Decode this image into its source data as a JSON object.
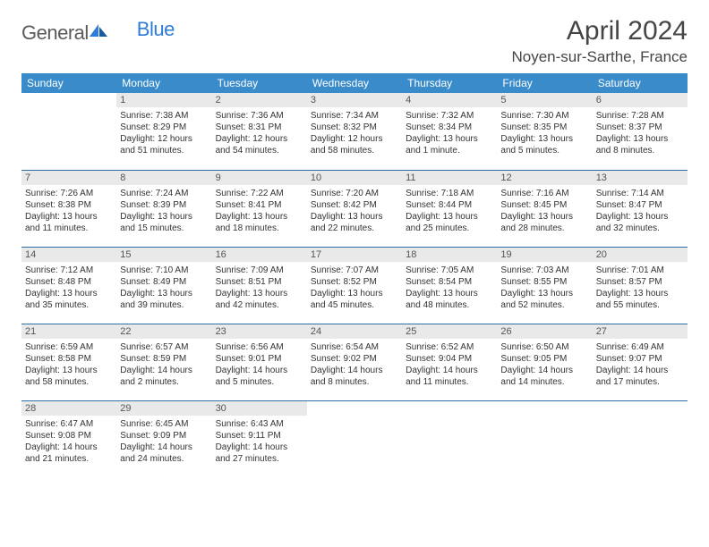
{
  "logo": {
    "text1": "General",
    "text2": "Blue"
  },
  "title": "April 2024",
  "location": "Noyen-sur-Sarthe, France",
  "colors": {
    "headerBg": "#3a8bc9",
    "headerText": "#ffffff",
    "rowBorder": "#2f6fa5",
    "dayBarBg": "#e9e9e9",
    "logoBlue": "#2e7cd6"
  },
  "weekdays": [
    "Sunday",
    "Monday",
    "Tuesday",
    "Wednesday",
    "Thursday",
    "Friday",
    "Saturday"
  ],
  "weeks": [
    [
      {
        "day": "",
        "l1": "",
        "l2": "",
        "l3": "",
        "l4": ""
      },
      {
        "day": "1",
        "l1": "Sunrise: 7:38 AM",
        "l2": "Sunset: 8:29 PM",
        "l3": "Daylight: 12 hours",
        "l4": "and 51 minutes."
      },
      {
        "day": "2",
        "l1": "Sunrise: 7:36 AM",
        "l2": "Sunset: 8:31 PM",
        "l3": "Daylight: 12 hours",
        "l4": "and 54 minutes."
      },
      {
        "day": "3",
        "l1": "Sunrise: 7:34 AM",
        "l2": "Sunset: 8:32 PM",
        "l3": "Daylight: 12 hours",
        "l4": "and 58 minutes."
      },
      {
        "day": "4",
        "l1": "Sunrise: 7:32 AM",
        "l2": "Sunset: 8:34 PM",
        "l3": "Daylight: 13 hours",
        "l4": "and 1 minute."
      },
      {
        "day": "5",
        "l1": "Sunrise: 7:30 AM",
        "l2": "Sunset: 8:35 PM",
        "l3": "Daylight: 13 hours",
        "l4": "and 5 minutes."
      },
      {
        "day": "6",
        "l1": "Sunrise: 7:28 AM",
        "l2": "Sunset: 8:37 PM",
        "l3": "Daylight: 13 hours",
        "l4": "and 8 minutes."
      }
    ],
    [
      {
        "day": "7",
        "l1": "Sunrise: 7:26 AM",
        "l2": "Sunset: 8:38 PM",
        "l3": "Daylight: 13 hours",
        "l4": "and 11 minutes."
      },
      {
        "day": "8",
        "l1": "Sunrise: 7:24 AM",
        "l2": "Sunset: 8:39 PM",
        "l3": "Daylight: 13 hours",
        "l4": "and 15 minutes."
      },
      {
        "day": "9",
        "l1": "Sunrise: 7:22 AM",
        "l2": "Sunset: 8:41 PM",
        "l3": "Daylight: 13 hours",
        "l4": "and 18 minutes."
      },
      {
        "day": "10",
        "l1": "Sunrise: 7:20 AM",
        "l2": "Sunset: 8:42 PM",
        "l3": "Daylight: 13 hours",
        "l4": "and 22 minutes."
      },
      {
        "day": "11",
        "l1": "Sunrise: 7:18 AM",
        "l2": "Sunset: 8:44 PM",
        "l3": "Daylight: 13 hours",
        "l4": "and 25 minutes."
      },
      {
        "day": "12",
        "l1": "Sunrise: 7:16 AM",
        "l2": "Sunset: 8:45 PM",
        "l3": "Daylight: 13 hours",
        "l4": "and 28 minutes."
      },
      {
        "day": "13",
        "l1": "Sunrise: 7:14 AM",
        "l2": "Sunset: 8:47 PM",
        "l3": "Daylight: 13 hours",
        "l4": "and 32 minutes."
      }
    ],
    [
      {
        "day": "14",
        "l1": "Sunrise: 7:12 AM",
        "l2": "Sunset: 8:48 PM",
        "l3": "Daylight: 13 hours",
        "l4": "and 35 minutes."
      },
      {
        "day": "15",
        "l1": "Sunrise: 7:10 AM",
        "l2": "Sunset: 8:49 PM",
        "l3": "Daylight: 13 hours",
        "l4": "and 39 minutes."
      },
      {
        "day": "16",
        "l1": "Sunrise: 7:09 AM",
        "l2": "Sunset: 8:51 PM",
        "l3": "Daylight: 13 hours",
        "l4": "and 42 minutes."
      },
      {
        "day": "17",
        "l1": "Sunrise: 7:07 AM",
        "l2": "Sunset: 8:52 PM",
        "l3": "Daylight: 13 hours",
        "l4": "and 45 minutes."
      },
      {
        "day": "18",
        "l1": "Sunrise: 7:05 AM",
        "l2": "Sunset: 8:54 PM",
        "l3": "Daylight: 13 hours",
        "l4": "and 48 minutes."
      },
      {
        "day": "19",
        "l1": "Sunrise: 7:03 AM",
        "l2": "Sunset: 8:55 PM",
        "l3": "Daylight: 13 hours",
        "l4": "and 52 minutes."
      },
      {
        "day": "20",
        "l1": "Sunrise: 7:01 AM",
        "l2": "Sunset: 8:57 PM",
        "l3": "Daylight: 13 hours",
        "l4": "and 55 minutes."
      }
    ],
    [
      {
        "day": "21",
        "l1": "Sunrise: 6:59 AM",
        "l2": "Sunset: 8:58 PM",
        "l3": "Daylight: 13 hours",
        "l4": "and 58 minutes."
      },
      {
        "day": "22",
        "l1": "Sunrise: 6:57 AM",
        "l2": "Sunset: 8:59 PM",
        "l3": "Daylight: 14 hours",
        "l4": "and 2 minutes."
      },
      {
        "day": "23",
        "l1": "Sunrise: 6:56 AM",
        "l2": "Sunset: 9:01 PM",
        "l3": "Daylight: 14 hours",
        "l4": "and 5 minutes."
      },
      {
        "day": "24",
        "l1": "Sunrise: 6:54 AM",
        "l2": "Sunset: 9:02 PM",
        "l3": "Daylight: 14 hours",
        "l4": "and 8 minutes."
      },
      {
        "day": "25",
        "l1": "Sunrise: 6:52 AM",
        "l2": "Sunset: 9:04 PM",
        "l3": "Daylight: 14 hours",
        "l4": "and 11 minutes."
      },
      {
        "day": "26",
        "l1": "Sunrise: 6:50 AM",
        "l2": "Sunset: 9:05 PM",
        "l3": "Daylight: 14 hours",
        "l4": "and 14 minutes."
      },
      {
        "day": "27",
        "l1": "Sunrise: 6:49 AM",
        "l2": "Sunset: 9:07 PM",
        "l3": "Daylight: 14 hours",
        "l4": "and 17 minutes."
      }
    ],
    [
      {
        "day": "28",
        "l1": "Sunrise: 6:47 AM",
        "l2": "Sunset: 9:08 PM",
        "l3": "Daylight: 14 hours",
        "l4": "and 21 minutes."
      },
      {
        "day": "29",
        "l1": "Sunrise: 6:45 AM",
        "l2": "Sunset: 9:09 PM",
        "l3": "Daylight: 14 hours",
        "l4": "and 24 minutes."
      },
      {
        "day": "30",
        "l1": "Sunrise: 6:43 AM",
        "l2": "Sunset: 9:11 PM",
        "l3": "Daylight: 14 hours",
        "l4": "and 27 minutes."
      },
      {
        "day": "",
        "l1": "",
        "l2": "",
        "l3": "",
        "l4": ""
      },
      {
        "day": "",
        "l1": "",
        "l2": "",
        "l3": "",
        "l4": ""
      },
      {
        "day": "",
        "l1": "",
        "l2": "",
        "l3": "",
        "l4": ""
      },
      {
        "day": "",
        "l1": "",
        "l2": "",
        "l3": "",
        "l4": ""
      }
    ]
  ]
}
